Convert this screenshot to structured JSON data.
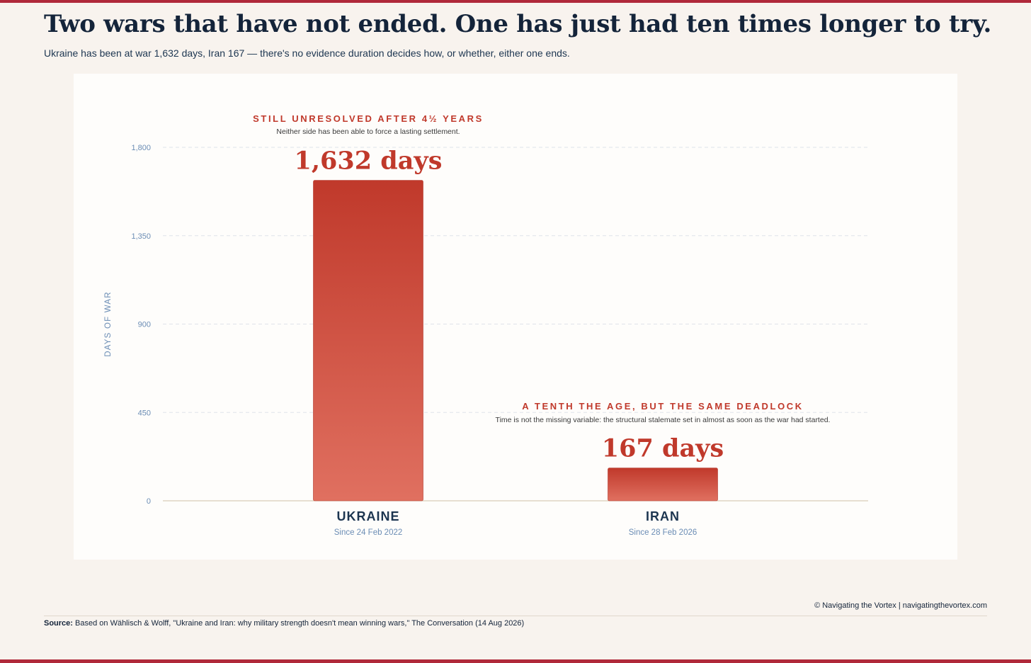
{
  "header": {
    "title": "Two wars that have not ended. One has just had ten times longer to try.",
    "subtitle": "Ukraine has been at war 1,632 days, Iran 167 — there's no evidence duration decides how, or whether, either one ends."
  },
  "annotations": {
    "ukraine": {
      "title": "STILL UNRESOLVED AFTER 4½ YEARS",
      "text": "Neither side has been able to force a lasting settlement."
    },
    "iran": {
      "title": "A TENTH THE AGE, BUT THE SAME DEADLOCK",
      "text": "Time is not the missing variable: the structural stalemate set in almost as soon as the war had started."
    }
  },
  "footer": {
    "credit": "© Navigating the Vortex | navigatingthevortex.com",
    "source_label": "Source:",
    "source_text": "Based on Wählisch & Wolff, \"Ukraine and Iran: why military strength doesn't mean winning wars,\" The Conversation (14 Aug 2026)"
  },
  "colors": {
    "bar_top": "#c0392b",
    "bar_bottom": "#e07060",
    "accent": "#c0392b",
    "category": "#1c3550",
    "axis_text": "#6b8db5",
    "frame": "#b0293a"
  },
  "chart_data": {
    "type": "bar",
    "title": "",
    "xlabel": "",
    "ylabel": "DAYS OF WAR",
    "ylim": [
      0,
      1800
    ],
    "yticks": [
      0,
      450,
      900,
      1350,
      1800
    ],
    "ytick_labels": [
      "0",
      "450",
      "900",
      "1,350",
      "1,800"
    ],
    "grid": true,
    "categories": [
      "UKRAINE",
      "IRAN"
    ],
    "category_sublabels": [
      "Since 24 Feb 2022",
      "Since 28 Feb 2026"
    ],
    "values": [
      1632,
      167
    ],
    "value_labels": [
      "1,632 days",
      "167 days"
    ]
  }
}
